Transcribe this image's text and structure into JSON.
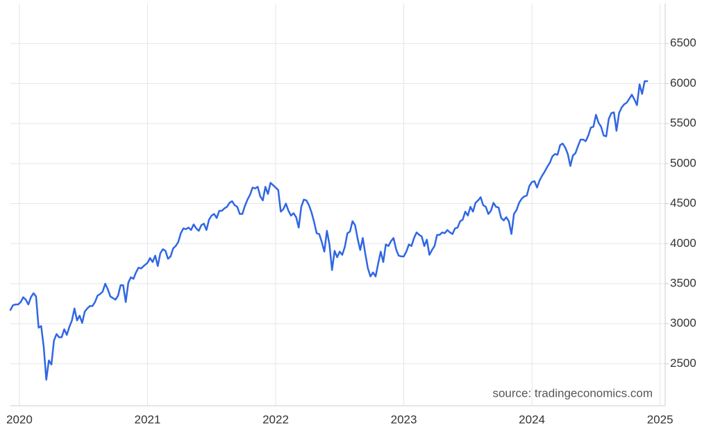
{
  "chart_data": {
    "type": "line",
    "source": "source: tradingeconomics.com",
    "color": "#2f66e4",
    "grid": true,
    "x": [
      2019.93,
      2019.95,
      2019.97,
      2019.99,
      2020.01,
      2020.03,
      2020.05,
      2020.07,
      2020.09,
      2020.11,
      2020.13,
      2020.15,
      2020.17,
      2020.19,
      2020.21,
      2020.23,
      2020.25,
      2020.27,
      2020.29,
      2020.31,
      2020.33,
      2020.35,
      2020.37,
      2020.39,
      2020.41,
      2020.43,
      2020.45,
      2020.47,
      2020.49,
      2020.51,
      2020.53,
      2020.55,
      2020.57,
      2020.59,
      2020.61,
      2020.63,
      2020.65,
      2020.67,
      2020.69,
      2020.71,
      2020.73,
      2020.75,
      2020.77,
      2020.79,
      2020.81,
      2020.83,
      2020.85,
      2020.87,
      2020.89,
      2020.91,
      2020.93,
      2020.95,
      2020.97,
      2021.0,
      2021.02,
      2021.04,
      2021.06,
      2021.08,
      2021.1,
      2021.12,
      2021.14,
      2021.16,
      2021.18,
      2021.2,
      2021.22,
      2021.24,
      2021.26,
      2021.28,
      2021.3,
      2021.32,
      2021.34,
      2021.36,
      2021.38,
      2021.4,
      2021.42,
      2021.44,
      2021.46,
      2021.48,
      2021.5,
      2021.52,
      2021.54,
      2021.56,
      2021.58,
      2021.6,
      2021.62,
      2021.64,
      2021.66,
      2021.68,
      2021.7,
      2021.72,
      2021.74,
      2021.76,
      2021.78,
      2021.8,
      2021.82,
      2021.84,
      2021.86,
      2021.88,
      2021.9,
      2021.92,
      2021.94,
      2021.96,
      2022.0,
      2022.02,
      2022.04,
      2022.06,
      2022.08,
      2022.1,
      2022.12,
      2022.14,
      2022.16,
      2022.18,
      2022.2,
      2022.22,
      2022.24,
      2022.26,
      2022.28,
      2022.3,
      2022.32,
      2022.34,
      2022.36,
      2022.38,
      2022.4,
      2022.42,
      2022.44,
      2022.46,
      2022.48,
      2022.5,
      2022.52,
      2022.54,
      2022.56,
      2022.58,
      2022.6,
      2022.62,
      2022.64,
      2022.66,
      2022.68,
      2022.7,
      2022.72,
      2022.74,
      2022.76,
      2022.78,
      2022.8,
      2022.82,
      2022.84,
      2022.86,
      2022.88,
      2022.9,
      2022.92,
      2022.94,
      2022.96,
      2022.98,
      2023.0,
      2023.02,
      2023.04,
      2023.06,
      2023.08,
      2023.1,
      2023.12,
      2023.14,
      2023.16,
      2023.18,
      2023.2,
      2023.22,
      2023.24,
      2023.26,
      2023.28,
      2023.3,
      2023.32,
      2023.34,
      2023.36,
      2023.38,
      2023.4,
      2023.42,
      2023.44,
      2023.46,
      2023.48,
      2023.5,
      2023.52,
      2023.54,
      2023.56,
      2023.58,
      2023.6,
      2023.62,
      2023.64,
      2023.66,
      2023.68,
      2023.7,
      2023.72,
      2023.74,
      2023.76,
      2023.78,
      2023.8,
      2023.82,
      2023.84,
      2023.86,
      2023.88,
      2023.9,
      2023.92,
      2023.94,
      2023.96,
      2023.98,
      2024.0,
      2024.02,
      2024.04,
      2024.06,
      2024.08,
      2024.1,
      2024.12,
      2024.14,
      2024.16,
      2024.18,
      2024.2,
      2024.22,
      2024.24,
      2024.26,
      2024.28,
      2024.3,
      2024.32,
      2024.34,
      2024.36,
      2024.38,
      2024.4,
      2024.42,
      2024.44,
      2024.46,
      2024.48,
      2024.5,
      2024.52,
      2024.54,
      2024.56,
      2024.58,
      2024.6,
      2024.62,
      2024.64,
      2024.66,
      2024.68,
      2024.7,
      2024.72,
      2024.74,
      2024.76,
      2024.78,
      2024.8,
      2024.82,
      2024.84,
      2024.86,
      2024.88,
      2024.9
    ],
    "values": [
      3170,
      3230,
      3240,
      3240,
      3270,
      3330,
      3300,
      3240,
      3330,
      3380,
      3340,
      2950,
      2970,
      2710,
      2300,
      2540,
      2490,
      2790,
      2870,
      2830,
      2830,
      2930,
      2860,
      2960,
      3040,
      3190,
      3040,
      3100,
      3010,
      3150,
      3190,
      3220,
      3220,
      3270,
      3350,
      3370,
      3400,
      3500,
      3430,
      3340,
      3320,
      3300,
      3350,
      3480,
      3480,
      3270,
      3510,
      3580,
      3560,
      3640,
      3700,
      3690,
      3720,
      3760,
      3820,
      3770,
      3850,
      3720,
      3880,
      3930,
      3910,
      3810,
      3840,
      3940,
      3970,
      4020,
      4130,
      4190,
      4180,
      4200,
      4170,
      4240,
      4190,
      4160,
      4230,
      4250,
      4170,
      4300,
      4350,
      4370,
      4320,
      4410,
      4410,
      4440,
      4460,
      4510,
      4530,
      4480,
      4460,
      4370,
      4370,
      4470,
      4550,
      4610,
      4700,
      4690,
      4710,
      4590,
      4540,
      4710,
      4620,
      4760,
      4700,
      4670,
      4400,
      4430,
      4500,
      4410,
      4350,
      4380,
      4330,
      4200,
      4460,
      4550,
      4540,
      4480,
      4390,
      4270,
      4130,
      4120,
      4020,
      3900,
      4160,
      3990,
      3670,
      3910,
      3830,
      3900,
      3860,
      3960,
      4130,
      4150,
      4280,
      4230,
      4060,
      3920,
      4070,
      3870,
      3690,
      3590,
      3640,
      3590,
      3750,
      3900,
      3770,
      3990,
      3970,
      4030,
      4070,
      3930,
      3850,
      3840,
      3840,
      3900,
      3990,
      3970,
      4070,
      4140,
      4110,
      4090,
      3970,
      4050,
      3860,
      3920,
      3970,
      4110,
      4110,
      4140,
      4130,
      4170,
      4140,
      4120,
      4190,
      4200,
      4280,
      4300,
      4400,
      4350,
      4460,
      4400,
      4510,
      4540,
      4580,
      4480,
      4460,
      4370,
      4410,
      4510,
      4460,
      4450,
      4320,
      4290,
      4330,
      4280,
      4120,
      4370,
      4420,
      4510,
      4560,
      4590,
      4600,
      4720,
      4770,
      4780,
      4700,
      4790,
      4850,
      4900,
      4960,
      5010,
      5090,
      5120,
      5110,
      5230,
      5250,
      5200,
      5120,
      4970,
      5100,
      5130,
      5220,
      5300,
      5300,
      5280,
      5350,
      5450,
      5460,
      5610,
      5510,
      5460,
      5350,
      5340,
      5560,
      5630,
      5640,
      5410,
      5630,
      5700,
      5740,
      5760,
      5810,
      5860,
      5800,
      5730,
      5990,
      5870,
      6030,
      6030
    ],
    "xlim": [
      2019.93,
      2025.04
    ],
    "xticks": [
      2020,
      2021,
      2022,
      2023,
      2024,
      2025
    ],
    "ylim": [
      1975,
      7000
    ],
    "yticks": [
      2500,
      3000,
      3500,
      4000,
      4500,
      5000,
      5500,
      6000,
      6500
    ]
  }
}
